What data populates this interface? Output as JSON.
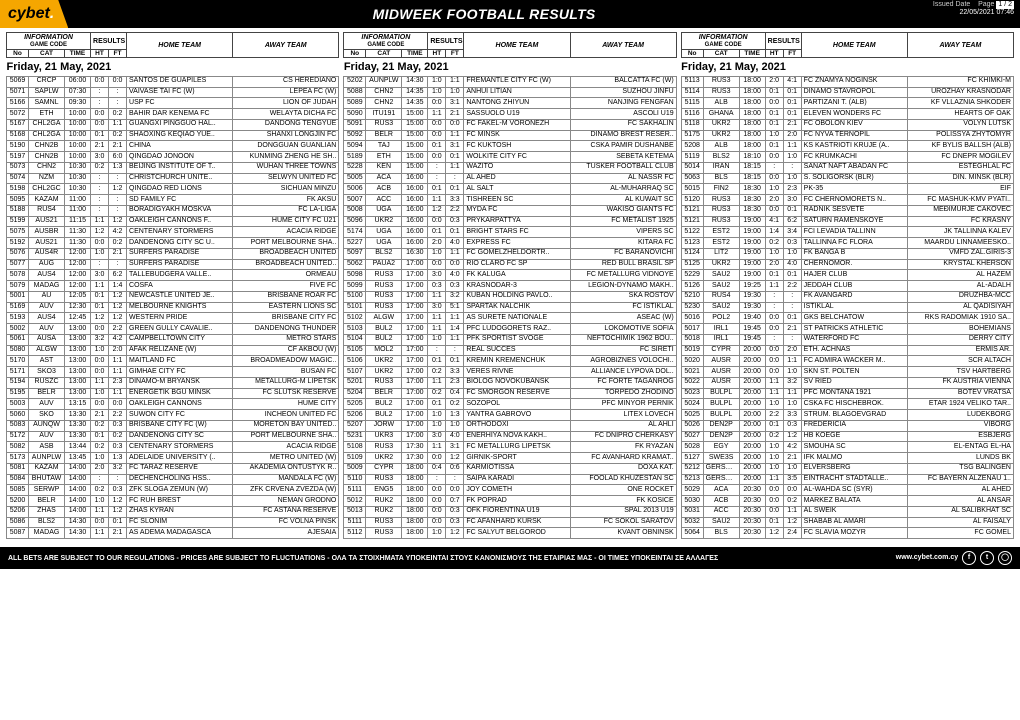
{
  "page": {
    "logo": "cybet",
    "logo_suffix": ".",
    "title": "MIDWEEK FOOTBALL RESULTS",
    "issued_label": "Issued Date",
    "issued": "22/05/2021 07:46",
    "page_label": "Page",
    "page_no": "1 / 2",
    "footer": "ALL BETS ARE SUBJECT TO OUR REGULATIONS - PRICES ARE SUBJECT TO FLUCTUATIONS - ΟΛΑ ΤΑ ΣΤΟΙΧΗΜΑΤΑ ΥΠΟΚΕΙΝΤΑΙ ΣΤΟΥΣ ΚΑΝΟΝΙΣΜΟΥΣ ΤΗΣ ΕΤΑΙΡΙΑΣ ΜΑΣ - ΟΙ ΤΙΜΕΣ ΥΠΟΚΕΙΝΤΑΙ ΣΕ ΑΛΛΑΓΕΣ",
    "url": "www.cybet.com.cy"
  },
  "head": {
    "info": "INFORMATION",
    "gamecode": "GAME CODE",
    "results": "RESULTS",
    "home": "HOME TEAM",
    "away": "AWAY TEAM",
    "no": "No",
    "cat": "CAT",
    "time": "TIME",
    "ht": "HT",
    "ft": "FT"
  },
  "date_label": "Friday, 21 May, 2021",
  "cols": [
    [
      [
        "5069",
        "CRCP",
        "06:00",
        "0:0",
        "0:0",
        "SANTOS DE GUAPILES",
        "CS HEREDIANO"
      ],
      [
        "5071",
        "SAPLW",
        "07:30",
        ":",
        ":",
        "VAIVASE TAI FC (W)",
        "LEPEA FC (W)"
      ],
      [
        "5166",
        "SAMNL",
        "09:30",
        ":",
        ":",
        "USP FC",
        "LION OF JUDAH"
      ],
      [
        "5072",
        "ETH",
        "10:00",
        "0:0",
        "0:2",
        "BAHIR DAR KENEMA FC",
        "WELAYTA DICHA FC"
      ],
      [
        "5167",
        "CHL2GA",
        "10:00",
        "0:0",
        "1:1",
        "GUANGXI PINGGUO HAL..",
        "DANDONG TENGYUE"
      ],
      [
        "5168",
        "CHL2GA",
        "10:00",
        "0:1",
        "0:2",
        "SHAOXING KEQIAO YUE..",
        "SHANXI LONGJIN FC"
      ],
      [
        "5190",
        "CHN2B",
        "10:00",
        "2:1",
        "2:1",
        "CHINA",
        "DONGGUAN GUANLIAN"
      ],
      [
        "5197",
        "CHN2B",
        "10:00",
        "3:0",
        "6:0",
        "QINGDAO JONOON",
        "KUNMING ZHENG HE SH.."
      ],
      [
        "5073",
        "CHN2",
        "10:30",
        "0:2",
        "1:3",
        "BEIJING INSTITUTE OF T..",
        "WUHAN THREE TOWNS"
      ],
      [
        "5074",
        "NZM",
        "10:30",
        ":",
        ":",
        "CHRISTCHURCH UNITE..",
        "SELWYN UNITED FC"
      ],
      [
        "5198",
        "CHL2GC",
        "10:30",
        ":",
        "1:2",
        "QINGDAO RED LIONS",
        "SICHUAN MINZU"
      ],
      [
        "5095",
        "KAZAM",
        "11:00",
        ":",
        ":",
        "SD FAMILY FC",
        "FK AKSU"
      ],
      [
        "5188",
        "RUS4",
        "11:00",
        ":",
        ":",
        "BORADIGYAKH MOSKVA",
        "FC LA-LIGA"
      ],
      [
        "5199",
        "AUS21",
        "11:15",
        "1:1",
        "1:2",
        "OAKLEIGH CANNONS F..",
        "HUME CITY FC U21"
      ],
      [
        "5075",
        "AUSBR",
        "11:30",
        "1:2",
        "4:2",
        "CENTENARY STORMERS",
        "ACACIA RIDGE"
      ],
      [
        "5192",
        "AUS21",
        "11:30",
        "0:0",
        "0:2",
        "DANDENONG CITY SC U..",
        "PORT MELBOURNE SHA.."
      ],
      [
        "5076",
        "AUS4R",
        "12:00",
        "1:0",
        "2:1",
        "SURFERS PARADISE",
        "BROADBEACH UNITED"
      ],
      [
        "5077",
        "AUG",
        "12:00",
        ":",
        ":",
        "SURFERS PARADISE",
        "BROADBEACH UNITED.."
      ],
      [
        "5078",
        "AUS4",
        "12:00",
        "3:0",
        "6:2",
        "TALLEBUDGERA VALLE..",
        "ORMEAU"
      ],
      [
        "5079",
        "MADAG",
        "12:00",
        "1:1",
        "1:4",
        "COSFA",
        "FIVE FC"
      ],
      [
        "5001",
        "AU",
        "12:05",
        "0:1",
        "1:2",
        "NEWCASTLE UNITED JE..",
        "BRISBANE ROAR FC"
      ],
      [
        "5169",
        "AUV",
        "12:30",
        "0:1",
        "1:2",
        "MELBOURNE KNIGHTS",
        "EASTERN LIONS SC"
      ],
      [
        "5193",
        "AUS4",
        "12:45",
        "1:2",
        "1:2",
        "WESTERN PRIDE",
        "BRISBANE CITY FC"
      ],
      [
        "5002",
        "AUV",
        "13:00",
        "0:0",
        "2:2",
        "GREEN GULLY CAVALIE..",
        "DANDENONG THUNDER"
      ],
      [
        "5061",
        "AUSA",
        "13:00",
        "3:2",
        "4:2",
        "CAMPBELLTOWN CITY",
        "METRO STARS"
      ],
      [
        "5080",
        "ALGW",
        "13:00",
        "1:0",
        "2:0",
        "AFAK RELIZANE (W)",
        "CF AKBOU (W)"
      ],
      [
        "5170",
        "AST",
        "13:00",
        "0:0",
        "1:1",
        "MAITLAND FC",
        "BROADMEADOW MAGIC.."
      ],
      [
        "5171",
        "SKO3",
        "13:00",
        "0:0",
        "1:1",
        "GIMHAE CITY FC",
        "BUSAN FC"
      ],
      [
        "5194",
        "RUSZC",
        "13:00",
        "1:1",
        "2:3",
        "DINAMO-M BRYANSK",
        "METALLURG-M LIPETSK"
      ],
      [
        "5195",
        "BELR",
        "13:00",
        "1:0",
        "1:1",
        "ENERGETIK BGU MINSK",
        "FC SLUTSK RESERVE"
      ],
      [
        "5003",
        "AUV",
        "13:15",
        "0:0",
        "0:0",
        "OAKLEIGH CANNONS",
        "HUME CITY"
      ],
      [
        "5060",
        "SKO",
        "13:30",
        "2:1",
        "2:2",
        "SUWON CITY FC",
        "INCHEON UNITED FC"
      ],
      [
        "5083",
        "AUNQW",
        "13:30",
        "0:2",
        "0:3",
        "BRISBANE CITY FC (W)",
        "MORETON BAY UNITED.."
      ],
      [
        "5172",
        "AUV",
        "13:30",
        "0:1",
        "0:2",
        "DANDENONG CITY SC",
        "PORT MELBOURNE SHA.."
      ],
      [
        "5082",
        "ASB",
        "13:44",
        "0:2",
        "0:3",
        "CENTENARY STORMERS",
        "ACACIA RIDGE"
      ],
      [
        "5173",
        "AUNPLW",
        "13:45",
        "1:0",
        "1:3",
        "ADELAIDE UNIVERSITY (..",
        "METRO UNITED (W)"
      ],
      [
        "5081",
        "KAZAM",
        "14:00",
        "2:0",
        "3:2",
        "FC TARAZ RESERVE",
        "AKADEMIA ONTUSTYK R.."
      ],
      [
        "5084",
        "BHUTAW",
        "14:00",
        ":",
        ":",
        "DECHENCHOLING HSS..",
        "MANDALA FC (W)"
      ],
      [
        "5085",
        "SERWP",
        "14:00",
        "0:2",
        "0:3",
        "ZFK SLOGA ZEMUN (W)",
        "ZFK CRVENA ZVEZDA (W)"
      ],
      [
        "5200",
        "BELR",
        "14:00",
        "1:0",
        "1:2",
        "FC RUH BREST",
        "NEMAN GRODNO"
      ],
      [
        "5206",
        "ZHAS",
        "14:00",
        "1:1",
        "1:2",
        "ZHAS KYRAN",
        "FC ASTANA RESERVE"
      ],
      [
        "5086",
        "BLS2",
        "14:30",
        "0:0",
        "0:1",
        "FC SLONIM",
        "FC VOLNA PINSK"
      ],
      [
        "5087",
        "MADAG",
        "14:30",
        "1:1",
        "2:1",
        "AS ADEMA MADAGASCA",
        "AJESAIA"
      ]
    ],
    [
      [
        "5202",
        "AUNPLW",
        "14:30",
        "1:0",
        "1:1",
        "FREMANTLE CITY FC (W)",
        "BALCATTA FC (W)"
      ],
      [
        "5088",
        "CHN2",
        "14:35",
        "1:0",
        "1:0",
        "ANHUI LITIAN",
        "SUZHOU JINFU"
      ],
      [
        "5089",
        "CHN2",
        "14:35",
        "0:0",
        "3:1",
        "NANTONG ZHIYUN",
        "NANJING FENGFAN"
      ],
      [
        "5090",
        "ITU191",
        "15:00",
        "1:1",
        "2:1",
        "SASSUOLO U19",
        "ASCOLI U19"
      ],
      [
        "5091",
        "RUS3",
        "15:00",
        "0:0",
        "0:0",
        "FC FAKEL-M VORONEZH",
        "FC SAKHALIN"
      ],
      [
        "5092",
        "BELR",
        "15:00",
        "0:0",
        "1:1",
        "FC MINSK",
        "DINAMO BREST RESER.."
      ],
      [
        "5094",
        "TAJ",
        "15:00",
        "0:1",
        "3:1",
        "FC KUKTOSH",
        "CSKA PAMIR DUSHANBE"
      ],
      [
        "5189",
        "ETH",
        "15:00",
        "0:0",
        "0:1",
        "WOLKITE CITY FC",
        "SEBETA KETEMA"
      ],
      [
        "5228",
        "KEN",
        "15:00",
        ":",
        "1:1",
        "WAZITO",
        "TUSKER FOOTBALL CLUB"
      ],
      [
        "5005",
        "ACA",
        "16:00",
        ":",
        ":",
        "AL AHED",
        "AL NASSR FC"
      ],
      [
        "5006",
        "ACB",
        "16:00",
        "0:1",
        "0:1",
        "AL SALT",
        "AL-MUHARRAQ SC"
      ],
      [
        "5007",
        "ACC",
        "16:00",
        "1:1",
        "3:3",
        "TISHREEN SC",
        "AL KUWAIT SC"
      ],
      [
        "5008",
        "UGA",
        "16:00",
        "1:2",
        "2:2",
        "MYDA FC",
        "WAKISO GIANTS FC"
      ],
      [
        "5096",
        "UKR2",
        "16:00",
        "0:0",
        "0:3",
        "PRYKARPATTYA",
        "FC METALIST 1925"
      ],
      [
        "5174",
        "UGA",
        "16:00",
        "0:1",
        "0:1",
        "BRIGHT STARS FC",
        "VIPERS SC"
      ],
      [
        "5227",
        "UGA",
        "16:00",
        "2:0",
        "4:0",
        "EXPRESS FC",
        "KITARA FC"
      ],
      [
        "5097",
        "BLS2",
        "16:30",
        "1:0",
        "1:1",
        "FC GOMELZHELDORTR..",
        "FC BARANOVICHI"
      ],
      [
        "5062",
        "PAUA2",
        "17:00",
        "0:0",
        "0:0",
        "RIO CLARO FC SP",
        "RED BULL BRASIL SP"
      ],
      [
        "5098",
        "RUS3",
        "17:00",
        "3:0",
        "4:0",
        "FK KALUGA",
        "FC METALLURG VIDNOYE"
      ],
      [
        "5099",
        "RUS3",
        "17:00",
        "0:3",
        "0:3",
        "KRASNODAR-3",
        "LEGION-DYNAMO MAKH.."
      ],
      [
        "5100",
        "RUS3",
        "17:00",
        "1:1",
        "3:2",
        "KUBAN HOLDING PAVLO..",
        "SKA ROSTOV"
      ],
      [
        "5101",
        "RUS3",
        "17:00",
        "3:0",
        "5:1",
        "SPARTAK NALCHIK",
        "FC ISTIKLAL"
      ],
      [
        "5102",
        "ALGW",
        "17:00",
        "1:1",
        "1:1",
        "AS SURETE NATIONALE",
        "ASEAC (W)"
      ],
      [
        "5103",
        "BUL2",
        "17:00",
        "1:1",
        "1:4",
        "PFC LUDOGORETS RAZ..",
        "LOKOMOTIVE SOFIA"
      ],
      [
        "5104",
        "BUL2",
        "17:00",
        "1:0",
        "1:1",
        "PFK SPORTIST SVOGE",
        "NEFTOCHIMIK 1962 BOU.."
      ],
      [
        "5105",
        "MOL2",
        "17:00",
        ":",
        ":",
        "REAL SUCCES",
        "FC SIRETI"
      ],
      [
        "5106",
        "UKR2",
        "17:00",
        "0:1",
        "0:1",
        "KREMIN KREMENCHUK",
        "AGROBIZNES VOLOCHI.."
      ],
      [
        "5107",
        "UKR2",
        "17:00",
        "0:2",
        "3:3",
        "VERES RIVNE",
        "ALLIANCE LYPOVA DOL.."
      ],
      [
        "5201",
        "RUS3",
        "17:00",
        "1:1",
        "2:3",
        "BIOLOG NOVOKUBANSK",
        "FC FORTE TAGANROG"
      ],
      [
        "5204",
        "BELR",
        "17:00",
        "0:2",
        "0:4",
        "FC SMORGON RESERVE",
        "TORPEDO ZHODINO"
      ],
      [
        "5205",
        "BUL2",
        "17:00",
        "0:1",
        "0:2",
        "SOZOPOL",
        "PFC MINYOR PERNIK"
      ],
      [
        "5206",
        "BUL2",
        "17:00",
        "1:0",
        "1:3",
        "YANTRA GABROVO",
        "LITEX LOVECH"
      ],
      [
        "5207",
        "JORW",
        "17:00",
        "1:0",
        "1:0",
        "ORTHODOXI",
        "AL AHLI"
      ],
      [
        "5231",
        "UKR3",
        "17:00",
        "3:0",
        "4:0",
        "ENERHIYA NOVA KAKH..",
        "FC DNIPRO CHERKASY"
      ],
      [
        "5108",
        "RUS3",
        "17:30",
        "1:1",
        "3:1",
        "FC METALLURG LIPETSK",
        "FK RYAZAN"
      ],
      [
        "5109",
        "UKR2",
        "17:30",
        "0:0",
        "1:2",
        "GIRNIK-SPORT",
        "FC AVANHARD KRAMAT.."
      ],
      [
        "5009",
        "CYPR",
        "18:00",
        "0:4",
        "0:6",
        "KARMIOTISSA",
        "DOXA KAT."
      ],
      [
        "5110",
        "RUS3",
        "18:00",
        ":",
        ":",
        "SAIPA KARADI",
        "FOOLAD KHUZESTAN SC"
      ],
      [
        "5111",
        "ENG5",
        "18:00",
        "0:0",
        "0:0",
        "JOY COMETH",
        "ONE ROCKET"
      ],
      [
        "5012",
        "RUK2",
        "18:00",
        "0:0",
        "0:7",
        "FK POPRAD",
        "FK KOSICE"
      ],
      [
        "5013",
        "RUK2",
        "18:00",
        "0:0",
        "0:3",
        "OFK FIORENTINA U19",
        "SPAL 2013 U19"
      ],
      [
        "5111",
        "RUS3",
        "18:00",
        "0:0",
        "0:3",
        "FC AFANHARD KURSK",
        "FC SOKOL SARATOV"
      ],
      [
        "5112",
        "RUS3",
        "18:00",
        "1:0",
        "1:2",
        "FC SALYUT BELGOROD",
        "KVANT OBNINSK"
      ]
    ],
    [
      [
        "5113",
        "RUS3",
        "18:00",
        "2:0",
        "4:1",
        "FC ZNAMYA NOGINSK",
        "FC KHIMKI-M"
      ],
      [
        "5114",
        "RUS3",
        "18:00",
        "0:1",
        "0:1",
        "DINAMO STAVROPOL",
        "UROZHAY KRASNODAR"
      ],
      [
        "5115",
        "ALB",
        "18:00",
        "0:0",
        "0:1",
        "PARTIZANI T. (ALB)",
        "KF VLLAZNIA SHKODER"
      ],
      [
        "5116",
        "GHANA",
        "18:00",
        "0:1",
        "0:1",
        "ELEVEN WONDERS FC",
        "HEARTS OF OAK"
      ],
      [
        "5118",
        "UKR2",
        "18:00",
        "0:1",
        "2:1",
        "FC OBOLON KIEV",
        "VOLYN LUTSK"
      ],
      [
        "5175",
        "UKR2",
        "18:00",
        "1:0",
        "2:0",
        "FC NYVA TERNOPIL",
        "POLISSYA ZHYTOMYR"
      ],
      [
        "5208",
        "ALB",
        "18:00",
        "0:1",
        "1:1",
        "KS KASTRIOTI KRUJE (A..",
        "KF BYLIS BALLSH (ALB)"
      ],
      [
        "5119",
        "BLS2",
        "18:10",
        "0:0",
        "1:0",
        "FC KRUMKACHI",
        "FC DNEPR MOGILEV"
      ],
      [
        "5014",
        "IRAN",
        "18:15",
        ":",
        ":",
        "SANAT NAFT ABADAN FC",
        "ESTEGHLAL FC"
      ],
      [
        "5063",
        "BLS",
        "18:15",
        "0:0",
        "1:0",
        "S. SOLIGORSK (BLR)",
        "DIN. MINSK (BLR)"
      ],
      [
        "5015",
        "FIN2",
        "18:30",
        "1:0",
        "2:3",
        "PK-35",
        "EIF"
      ],
      [
        "5120",
        "RUS3",
        "18:30",
        "2:0",
        "3:0",
        "FC CHERNOMORETS N..",
        "FC MASHUK-KMV PYATI.."
      ],
      [
        "5121",
        "RUS3",
        "18:30",
        "0:0",
        "0:1",
        "RADNIK SESVETE",
        "MEĐIMURJE CAKOVEC"
      ],
      [
        "5121",
        "RUS3",
        "19:00",
        "4:1",
        "6:2",
        "SATURN RAMENSKOYE",
        "FC KRASNY"
      ],
      [
        "5122",
        "EST2",
        "19:00",
        "1:4",
        "3:4",
        "FCI LEVADIA TALLINN",
        "JK TALLINNA KALEV"
      ],
      [
        "5123",
        "EST2",
        "19:00",
        "0:2",
        "0:3",
        "TALLINNA FC FLORA",
        "MAARDU LINNAMEESKO.."
      ],
      [
        "5124",
        "LIT2",
        "19:00",
        "1:0",
        "1:0",
        "FK BANGA B",
        "VMFD ZAL.GIRIS-3"
      ],
      [
        "5125",
        "UKR2",
        "19:00",
        "2:0",
        "4:0",
        "CHERNOMOR.",
        "KRYSTAL KHERSON"
      ],
      [
        "5229",
        "SAU2",
        "19:00",
        "0:1",
        "0:1",
        "HAJER CLUB",
        "AL HAZEM"
      ],
      [
        "5126",
        "SAU2",
        "19:25",
        "1:1",
        "2:2",
        "JEDDAH CLUB",
        "AL-ADALH"
      ],
      [
        "5210",
        "RUS4",
        "19:30",
        ":",
        ":",
        "FK AVANGARD",
        "DRUZHBA-MCC"
      ],
      [
        "5230",
        "SAU2",
        "19:30",
        ":",
        ":",
        "ISTIKLAL",
        "AL QADISIYAH"
      ],
      [
        "5016",
        "POL2",
        "19:40",
        "0:0",
        "0:1",
        "GKS BELCHATOW",
        "RKS RADOMIAK 1910 SA.."
      ],
      [
        "5017",
        "IRL1",
        "19:45",
        "0:0",
        "2:1",
        "ST PATRICKS ATHLETIC",
        "BOHEMIANS"
      ],
      [
        "5018",
        "IRL1",
        "19:45",
        ":",
        ":",
        "WATERFORD FC",
        "DERRY CITY"
      ],
      [
        "5019",
        "CYPR",
        "20:00",
        "0:0",
        "2:0",
        "ETH. ACHNAS",
        "ERMIS AR."
      ],
      [
        "5020",
        "AUSR",
        "20:00",
        "0:0",
        "1:1",
        "FC ADMIRA WACKER M..",
        "SCR ALTACH"
      ],
      [
        "5021",
        "AUSR",
        "20:00",
        "0:0",
        "1:0",
        "SKN ST. POLTEN",
        "TSV HARTBERG"
      ],
      [
        "5022",
        "AUSR",
        "20:00",
        "1:1",
        "3:2",
        "SV RIED",
        "FK AUSTRIA VIENNA"
      ],
      [
        "5023",
        "BULPL",
        "20:00",
        "1:1",
        "1:1",
        "PFC MONTANA 1921",
        "BOTEV VRATSA"
      ],
      [
        "5024",
        "BULPL",
        "20:00",
        "1:0",
        "1:0",
        "CSKA FC HISCHEBROK.",
        "ETAR 1924 VELIKO TAR.."
      ],
      [
        "5025",
        "BULPL",
        "20:00",
        "2:2",
        "3:3",
        "STRUM. BLAGOEVGRAD",
        "LUDEKBORG"
      ],
      [
        "5026",
        "DEN2P",
        "20:00",
        "0:1",
        "0:3",
        "FREDERICIA",
        "VIBORG"
      ],
      [
        "5027",
        "DEN2P",
        "20:00",
        "0:2",
        "1:2",
        "HB KOEGE",
        "ESBJERG"
      ],
      [
        "5028",
        "EGY",
        "20:00",
        "1:0",
        "4:2",
        "SMOUHA SC",
        "EL-ENTAG EL-HA"
      ],
      [
        "5127",
        "SWE3S",
        "20:00",
        "1:0",
        "2:1",
        "IFK MALMO",
        "LUNDS BK"
      ],
      [
        "5212",
        "GERSWR",
        "20:00",
        "1:0",
        "1:0",
        "ELVERSBERG",
        "TSG BALINGEN"
      ],
      [
        "5213",
        "GERSWR",
        "20:00",
        "1:1",
        "3:5",
        "EINTRACHT STADTALLE..",
        "FC BAYERN ALZENAU 1.."
      ],
      [
        "5029",
        "ACA",
        "20:30",
        "0:0",
        "0:0",
        "AL-WAHDA SC (SYR)",
        "AL AHED"
      ],
      [
        "5030",
        "ACB",
        "20:30",
        "0:0",
        "0:2",
        "MARKEZ BALATA",
        "AL ANSAR"
      ],
      [
        "5031",
        "ACC",
        "20:30",
        "0:0",
        "1:1",
        "AL SWEIK",
        "AL SALIBKHAT SC"
      ],
      [
        "5032",
        "SAU2",
        "20:30",
        "0:1",
        "1:2",
        "SHABAB AL AMARI",
        "AL FAISALY"
      ],
      [
        "5064",
        "BLS",
        "20:30",
        "1:2",
        "2:4",
        "FC SLAVIA MOZYR",
        "FC GOMEL"
      ]
    ]
  ]
}
